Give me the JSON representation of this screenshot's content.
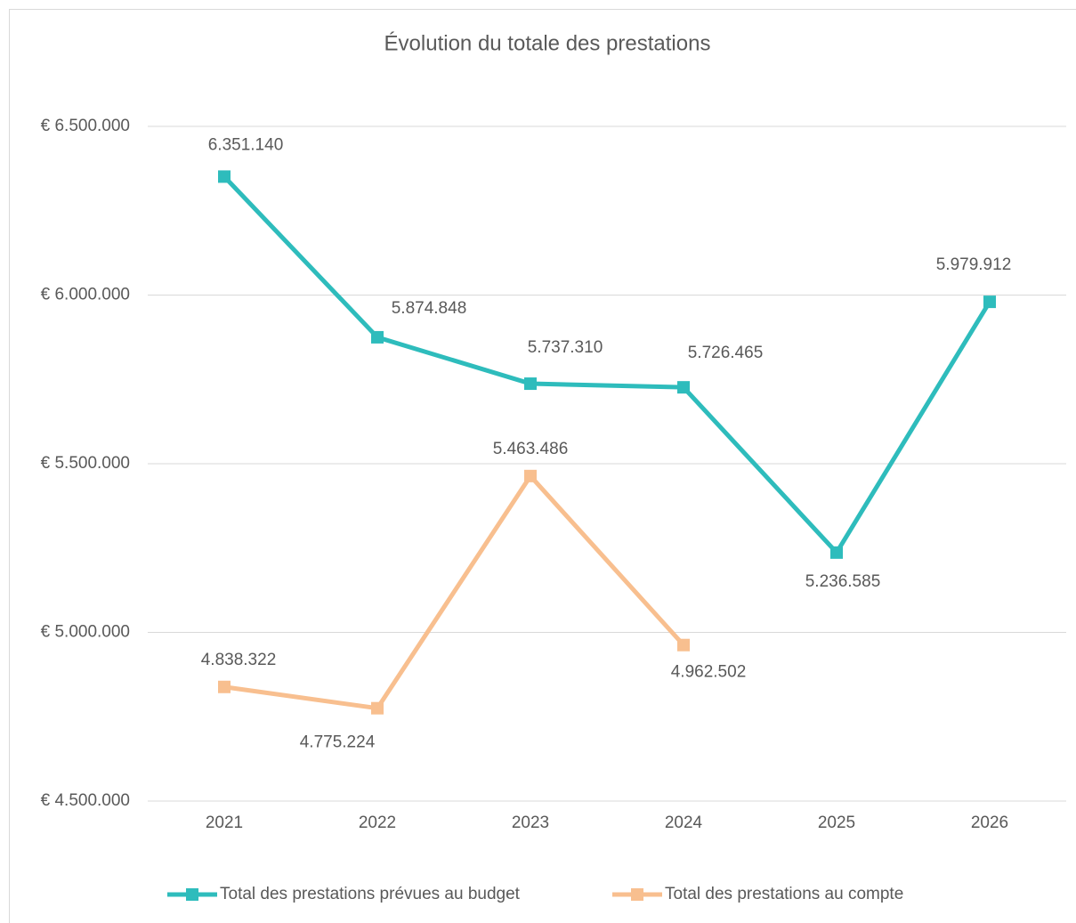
{
  "chart_data": {
    "type": "line",
    "title": "Évolution du totale des prestations",
    "categories": [
      "2021",
      "2022",
      "2023",
      "2024",
      "2025",
      "2026"
    ],
    "series": [
      {
        "name": "Total des prestations prévues au budget",
        "color": "#2ebcbc",
        "values": [
          6351140,
          5874848,
          5737310,
          5726465,
          5236585,
          5979912
        ],
        "value_labels": [
          "6.351.140",
          "5.874.848",
          "5.737.310",
          "5.726.465",
          "5.236.585",
          "5.979.912"
        ]
      },
      {
        "name": "Total des prestations au compte",
        "color": "#f8bf8f",
        "values": [
          4838322,
          4775224,
          5463486,
          4962502,
          null,
          null
        ],
        "value_labels": [
          "4.838.322",
          "4.775.224",
          "5.463.486",
          "4.962.502",
          null,
          null
        ]
      }
    ],
    "ylim": [
      4500000,
      6500000
    ],
    "yticks": [
      {
        "value": 4500000,
        "label": "€ 4.500.000"
      },
      {
        "value": 5000000,
        "label": "€ 5.000.000"
      },
      {
        "value": 5500000,
        "label": "€ 5.500.000"
      },
      {
        "value": 6000000,
        "label": "€ 6.000.000"
      },
      {
        "value": 6500000,
        "label": "€ 6.500.000"
      }
    ],
    "grid": true,
    "legend": "bottom"
  }
}
